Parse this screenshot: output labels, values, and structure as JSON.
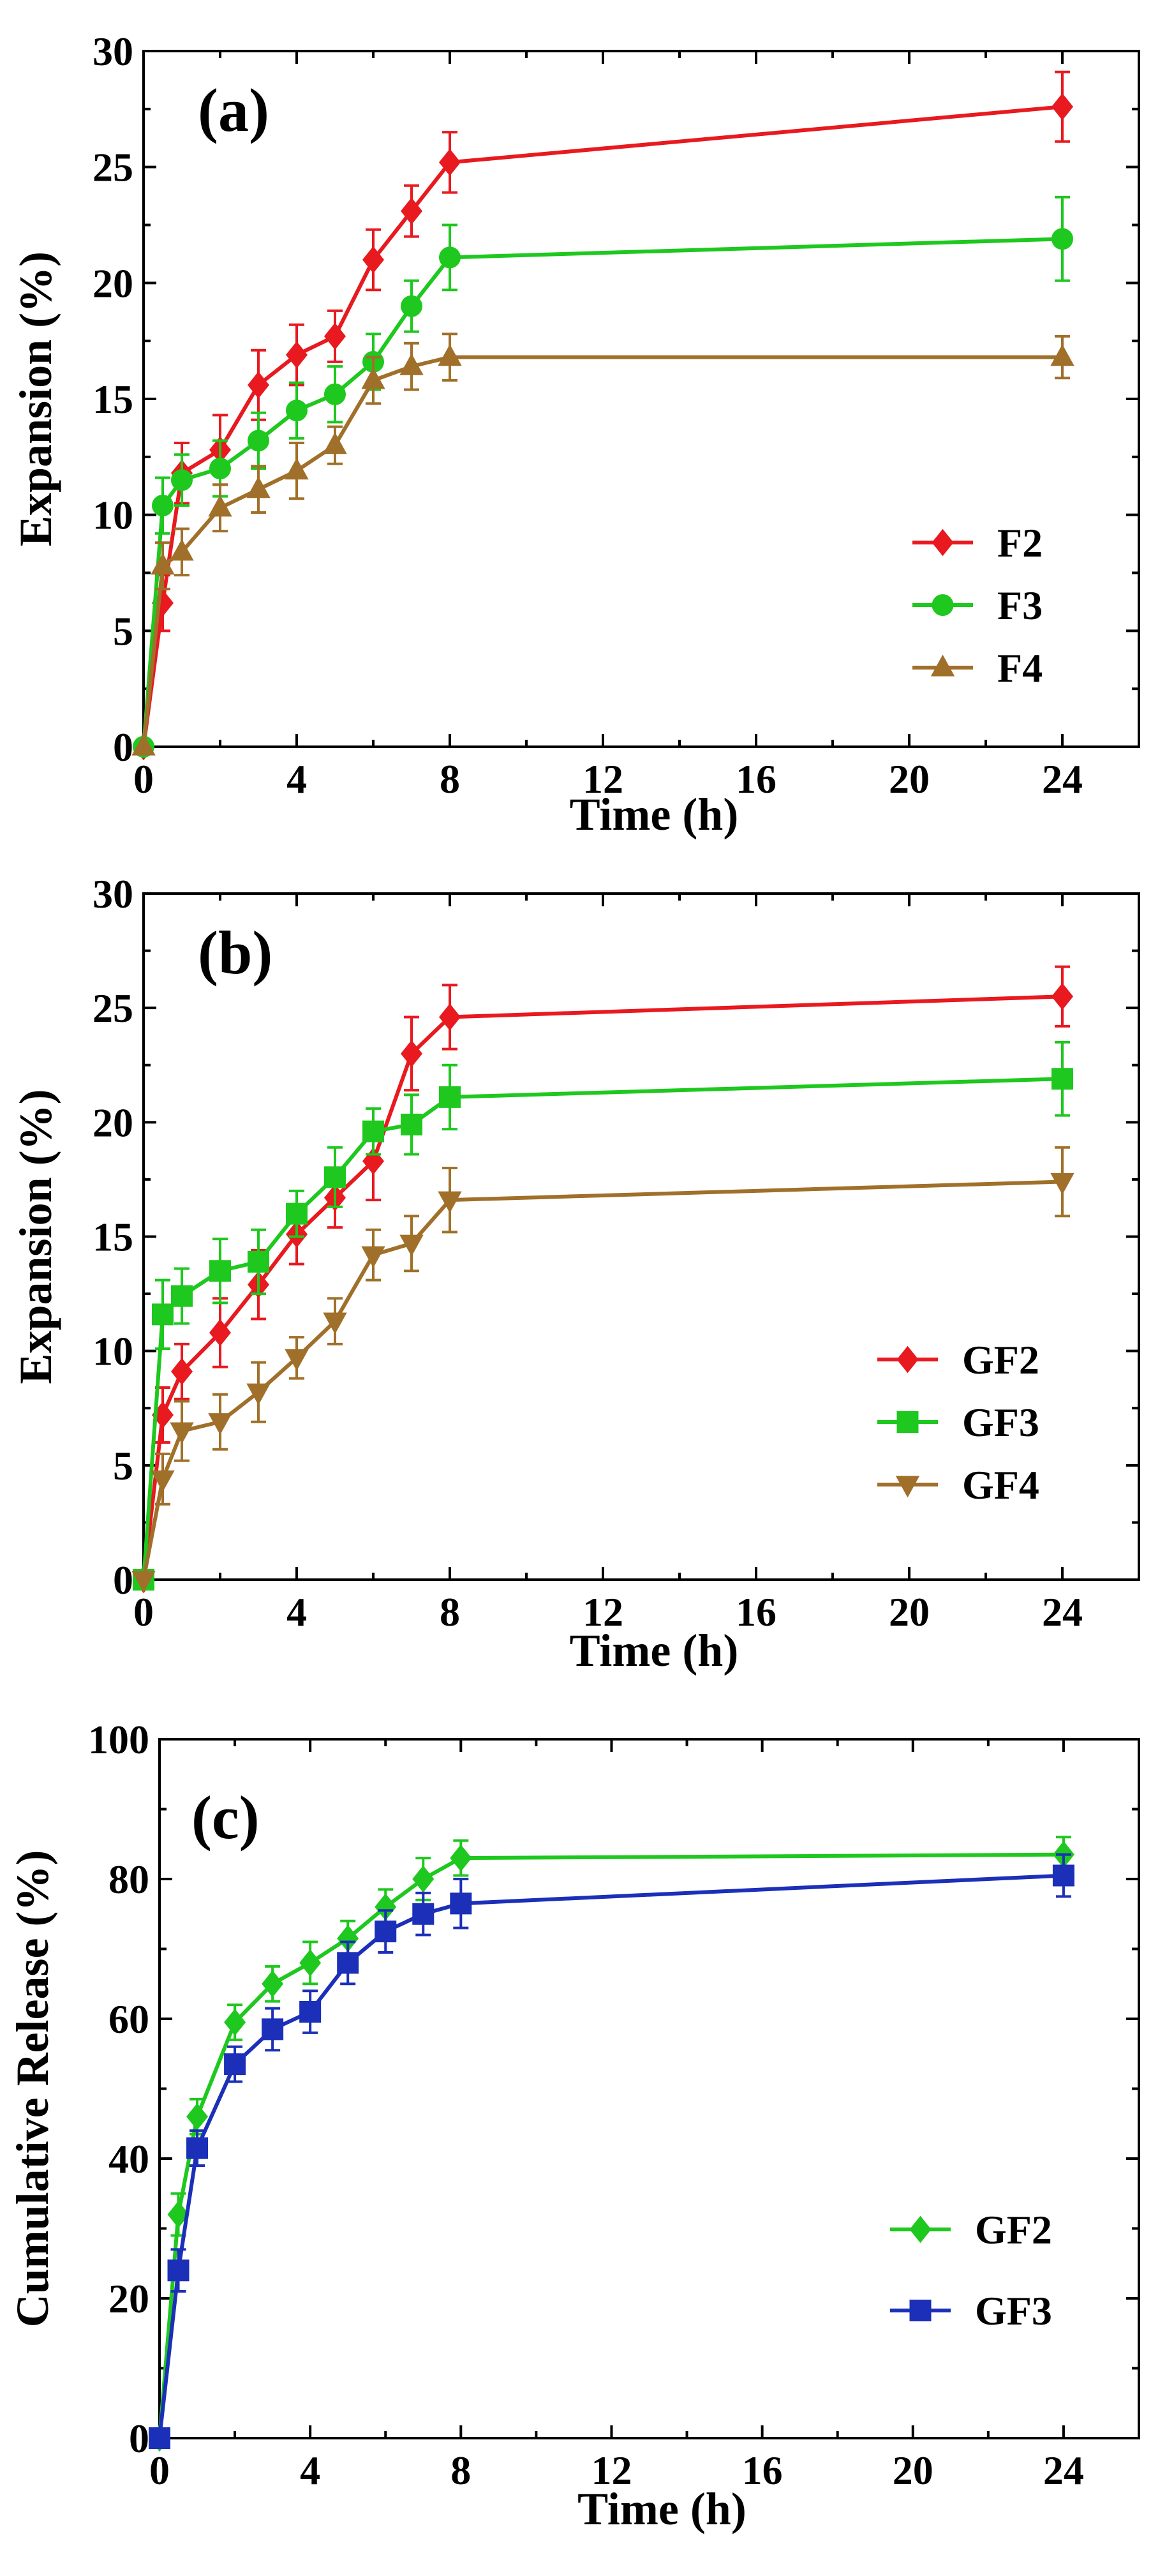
{
  "chart_data": [
    {
      "type": "line",
      "panel_label": "(a)",
      "xlabel": "Time (h)",
      "ylabel": "Expansion (%)",
      "xlim": [
        0,
        26
      ],
      "ylim": [
        0,
        30
      ],
      "xticks": [
        0,
        4,
        8,
        12,
        16,
        20,
        24
      ],
      "yticks": [
        0,
        5,
        10,
        15,
        20,
        25,
        30
      ],
      "grid": false,
      "legend_position": "lower-right",
      "x": [
        0,
        0.5,
        1,
        2,
        3,
        4,
        5,
        6,
        7,
        8,
        24
      ],
      "series": [
        {
          "name": "F2",
          "color": "#e8191f",
          "marker": "diamond",
          "values": [
            0,
            6.2,
            11.8,
            12.8,
            15.6,
            16.9,
            17.7,
            21.0,
            23.1,
            25.2,
            27.6
          ],
          "error": [
            0,
            1.2,
            1.3,
            1.5,
            1.5,
            1.3,
            1.1,
            1.3,
            1.1,
            1.3,
            1.5
          ]
        },
        {
          "name": "F3",
          "color": "#1ec81e",
          "marker": "circle",
          "values": [
            0,
            10.4,
            11.5,
            12.0,
            13.2,
            14.5,
            15.2,
            16.6,
            19.0,
            21.1,
            21.9
          ],
          "error": [
            0,
            1.2,
            1.1,
            1.2,
            1.2,
            1.2,
            1.2,
            1.2,
            1.1,
            1.4,
            1.8
          ]
        },
        {
          "name": "F4",
          "color": "#a0702a",
          "marker": "triangle-up",
          "values": [
            0,
            7.8,
            8.4,
            10.3,
            11.1,
            11.9,
            13.0,
            15.8,
            16.4,
            16.8,
            16.8
          ],
          "error": [
            0,
            1.0,
            1.0,
            1.0,
            1.0,
            1.2,
            0.8,
            1.0,
            1.0,
            1.0,
            0.9
          ]
        }
      ]
    },
    {
      "type": "line",
      "panel_label": "(b)",
      "xlabel": "Time (h)",
      "ylabel": "Expansion (%)",
      "xlim": [
        0,
        26
      ],
      "ylim": [
        0,
        30
      ],
      "xticks": [
        0,
        4,
        8,
        12,
        16,
        20,
        24
      ],
      "yticks": [
        0,
        5,
        10,
        15,
        20,
        25,
        30
      ],
      "grid": false,
      "legend_position": "lower-right",
      "x": [
        0,
        0.5,
        1,
        2,
        3,
        4,
        5,
        6,
        7,
        8,
        24
      ],
      "series": [
        {
          "name": "GF2",
          "color": "#e8191f",
          "marker": "diamond",
          "values": [
            0,
            7.2,
            9.1,
            10.8,
            12.9,
            15.1,
            16.7,
            18.3,
            23.0,
            24.6,
            25.5
          ],
          "error": [
            0,
            1.2,
            1.2,
            1.5,
            1.5,
            1.3,
            1.3,
            1.7,
            1.6,
            1.4,
            1.3
          ]
        },
        {
          "name": "GF3",
          "color": "#1ec81e",
          "marker": "square",
          "values": [
            0,
            11.6,
            12.4,
            13.5,
            13.9,
            16.0,
            17.6,
            19.6,
            19.9,
            21.1,
            21.9
          ],
          "error": [
            0,
            1.5,
            1.2,
            1.4,
            1.4,
            1.0,
            1.3,
            1.0,
            1.3,
            1.4,
            1.6
          ]
        },
        {
          "name": "GF4",
          "color": "#a0702a",
          "marker": "triangle-down",
          "values": [
            0,
            4.4,
            6.5,
            6.9,
            8.2,
            9.7,
            11.3,
            14.2,
            14.7,
            16.6,
            17.4
          ],
          "error": [
            0,
            1.1,
            1.3,
            1.2,
            1.3,
            0.9,
            1.0,
            1.1,
            1.2,
            1.4,
            1.5
          ]
        }
      ]
    },
    {
      "type": "line",
      "panel_label": "(c)",
      "xlabel": "Time (h)",
      "ylabel": "Cumulative Release (%)",
      "xlim": [
        0,
        26
      ],
      "ylim": [
        0,
        100
      ],
      "xticks": [
        0,
        4,
        8,
        12,
        16,
        20,
        24
      ],
      "yticks": [
        0,
        20,
        40,
        60,
        80,
        100
      ],
      "grid": false,
      "legend_position": "lower-right",
      "x": [
        0,
        0.5,
        1,
        2,
        3,
        4,
        5,
        6,
        7,
        8,
        24
      ],
      "series": [
        {
          "name": "GF2",
          "color": "#1ec81e",
          "marker": "diamond",
          "values": [
            0,
            32.0,
            46.0,
            59.5,
            65.0,
            68.0,
            71.5,
            76.0,
            80.0,
            83.0,
            83.5
          ],
          "error": [
            0,
            3.0,
            2.5,
            2.5,
            2.5,
            3.0,
            2.5,
            2.5,
            3.0,
            2.5,
            2.5
          ]
        },
        {
          "name": "GF3",
          "color": "#1c2fb8",
          "marker": "square",
          "values": [
            0,
            24.0,
            41.5,
            53.5,
            58.5,
            61.0,
            68.0,
            72.5,
            75.0,
            76.5,
            80.5
          ],
          "error": [
            0,
            3.0,
            2.5,
            2.5,
            3.0,
            3.0,
            3.0,
            3.0,
            3.0,
            3.5,
            3.0
          ]
        }
      ]
    }
  ]
}
